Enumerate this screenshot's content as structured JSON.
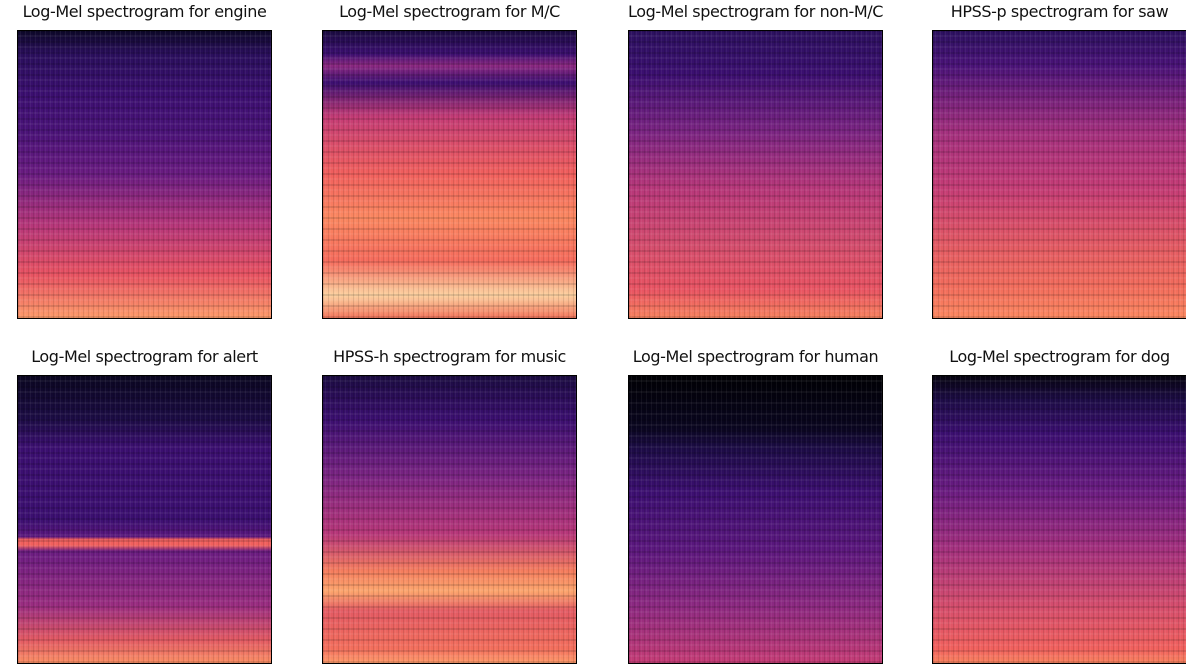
{
  "panels": [
    {
      "title": "Log-Mel spectrogram for engine"
    },
    {
      "title": "Log-Mel spectrogram for M/C"
    },
    {
      "title": "Log-Mel spectrogram for non-M/C"
    },
    {
      "title": "HPSS-p spectrogram for saw"
    },
    {
      "title": "Log-Mel spectrogram for alert"
    },
    {
      "title": "HPSS-h spectrogram for music"
    },
    {
      "title": "Log-Mel spectrogram for human"
    },
    {
      "title": "Log-Mel spectrogram for dog"
    }
  ]
}
